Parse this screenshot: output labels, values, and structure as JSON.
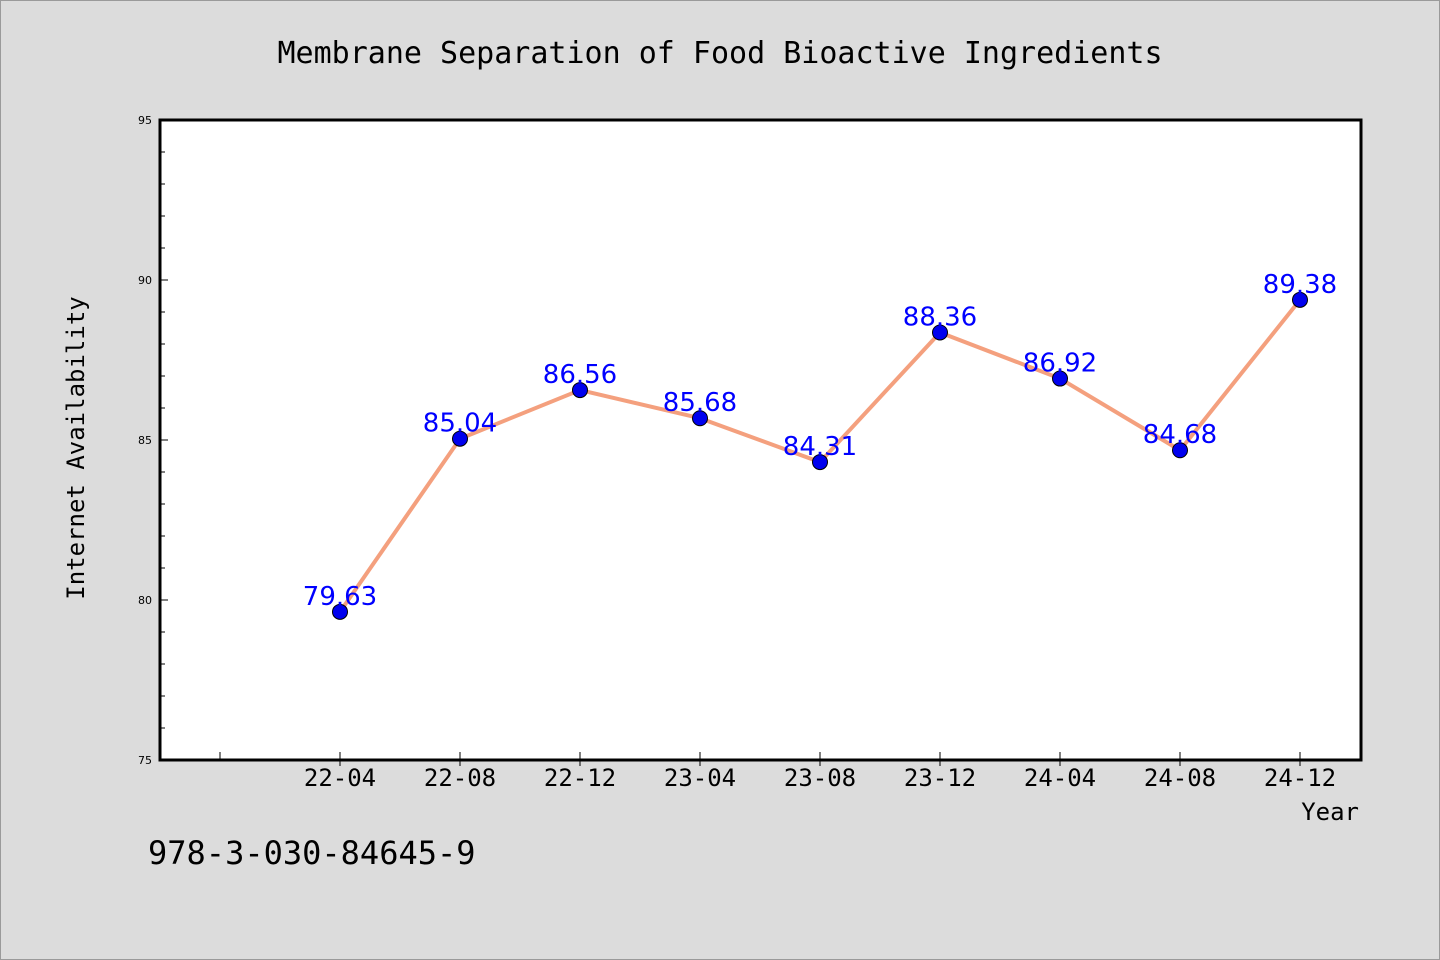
{
  "chart_data": {
    "type": "line",
    "title": "Membrane Separation of Food Bioactive Ingredients",
    "xlabel": "Year",
    "ylabel": "Internet Availability",
    "categories": [
      "22-04",
      "22-08",
      "22-12",
      "23-04",
      "23-08",
      "23-12",
      "24-04",
      "24-08",
      "24-12"
    ],
    "series": [
      {
        "values": [
          79.63,
          85.04,
          86.56,
          85.68,
          84.31,
          88.36,
          86.92,
          84.68,
          89.38
        ]
      }
    ],
    "value_labels": [
      "79.63",
      "85.04",
      "86.56",
      "85.68",
      "84.31",
      "88.36",
      "86.92",
      "84.68",
      "89.38"
    ],
    "ylim": [
      75,
      95
    ],
    "yticks": [
      "75",
      "80",
      "85",
      "90",
      "95"
    ],
    "grid": false,
    "colors": {
      "line": "#f4a07e",
      "marker": "#0000ee",
      "label": "#0000ff",
      "background": "#dcdcdc",
      "plot": "#ffffff"
    }
  },
  "annotation": "978-3-030-84645-9"
}
